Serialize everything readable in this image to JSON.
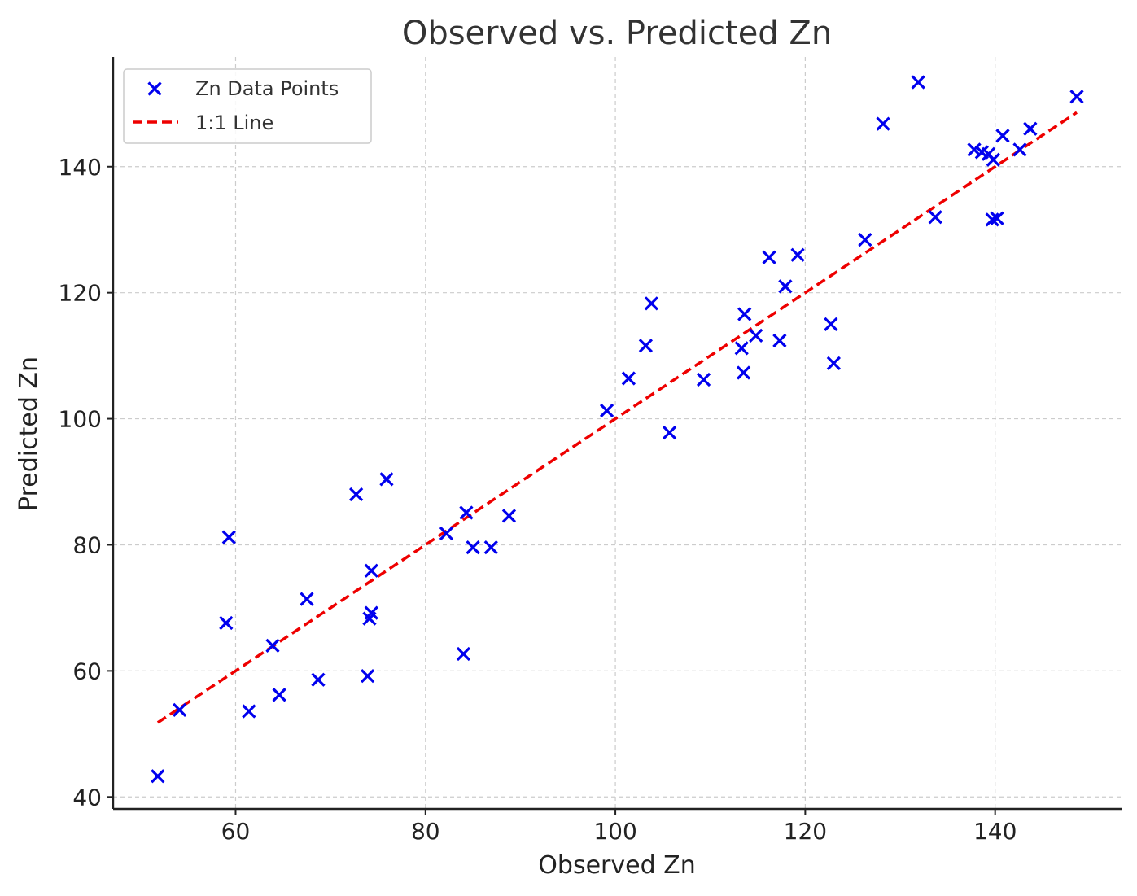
{
  "chart_data": {
    "type": "scatter",
    "title": "Observed vs. Predicted Zn",
    "xlabel": "Observed Zn",
    "ylabel": "Predicted Zn",
    "xlim": [
      47.1,
      153.4
    ],
    "ylim": [
      38.1,
      157.4
    ],
    "xticks": [
      60,
      80,
      100,
      120,
      140
    ],
    "yticks": [
      40,
      60,
      80,
      100,
      120,
      140
    ],
    "grid": true,
    "legend_position": "top-left",
    "series": [
      {
        "name": "Zn Data Points",
        "marker": "x",
        "color": "#0000ee",
        "points": [
          [
            51.8,
            43.3
          ],
          [
            54.1,
            53.8
          ],
          [
            59.0,
            67.6
          ],
          [
            59.3,
            81.2
          ],
          [
            61.4,
            53.6
          ],
          [
            63.9,
            64.0
          ],
          [
            64.6,
            56.2
          ],
          [
            67.5,
            71.4
          ],
          [
            68.7,
            58.6
          ],
          [
            72.7,
            88.0
          ],
          [
            73.9,
            59.2
          ],
          [
            74.1,
            68.3
          ],
          [
            74.3,
            69.2
          ],
          [
            74.3,
            75.9
          ],
          [
            75.9,
            90.4
          ],
          [
            82.2,
            81.8
          ],
          [
            84.0,
            62.7
          ],
          [
            84.3,
            85.1
          ],
          [
            85.0,
            79.6
          ],
          [
            86.9,
            79.6
          ],
          [
            88.8,
            84.6
          ],
          [
            99.1,
            101.3
          ],
          [
            101.4,
            106.4
          ],
          [
            103.2,
            111.6
          ],
          [
            103.8,
            118.3
          ],
          [
            105.7,
            97.8
          ],
          [
            109.3,
            106.2
          ],
          [
            113.3,
            111.2
          ],
          [
            113.5,
            107.3
          ],
          [
            113.6,
            116.6
          ],
          [
            114.8,
            113.2
          ],
          [
            116.2,
            125.6
          ],
          [
            117.3,
            112.4
          ],
          [
            117.9,
            121.0
          ],
          [
            119.2,
            126.0
          ],
          [
            122.7,
            115.0
          ],
          [
            123.0,
            108.8
          ],
          [
            126.3,
            128.4
          ],
          [
            128.2,
            146.8
          ],
          [
            131.9,
            153.4
          ],
          [
            133.7,
            132.0
          ],
          [
            137.8,
            142.7
          ],
          [
            138.6,
            142.3
          ],
          [
            139.3,
            142.0
          ],
          [
            139.7,
            131.6
          ],
          [
            139.8,
            141.1
          ],
          [
            140.2,
            131.8
          ],
          [
            140.8,
            144.9
          ],
          [
            142.6,
            142.7
          ],
          [
            143.7,
            146.0
          ],
          [
            148.6,
            151.1
          ]
        ]
      },
      {
        "name": "1:1 Line",
        "style": "dashed",
        "color": "#ee0000",
        "points": [
          [
            51.8,
            51.8
          ],
          [
            148.6,
            148.6
          ]
        ]
      }
    ]
  }
}
